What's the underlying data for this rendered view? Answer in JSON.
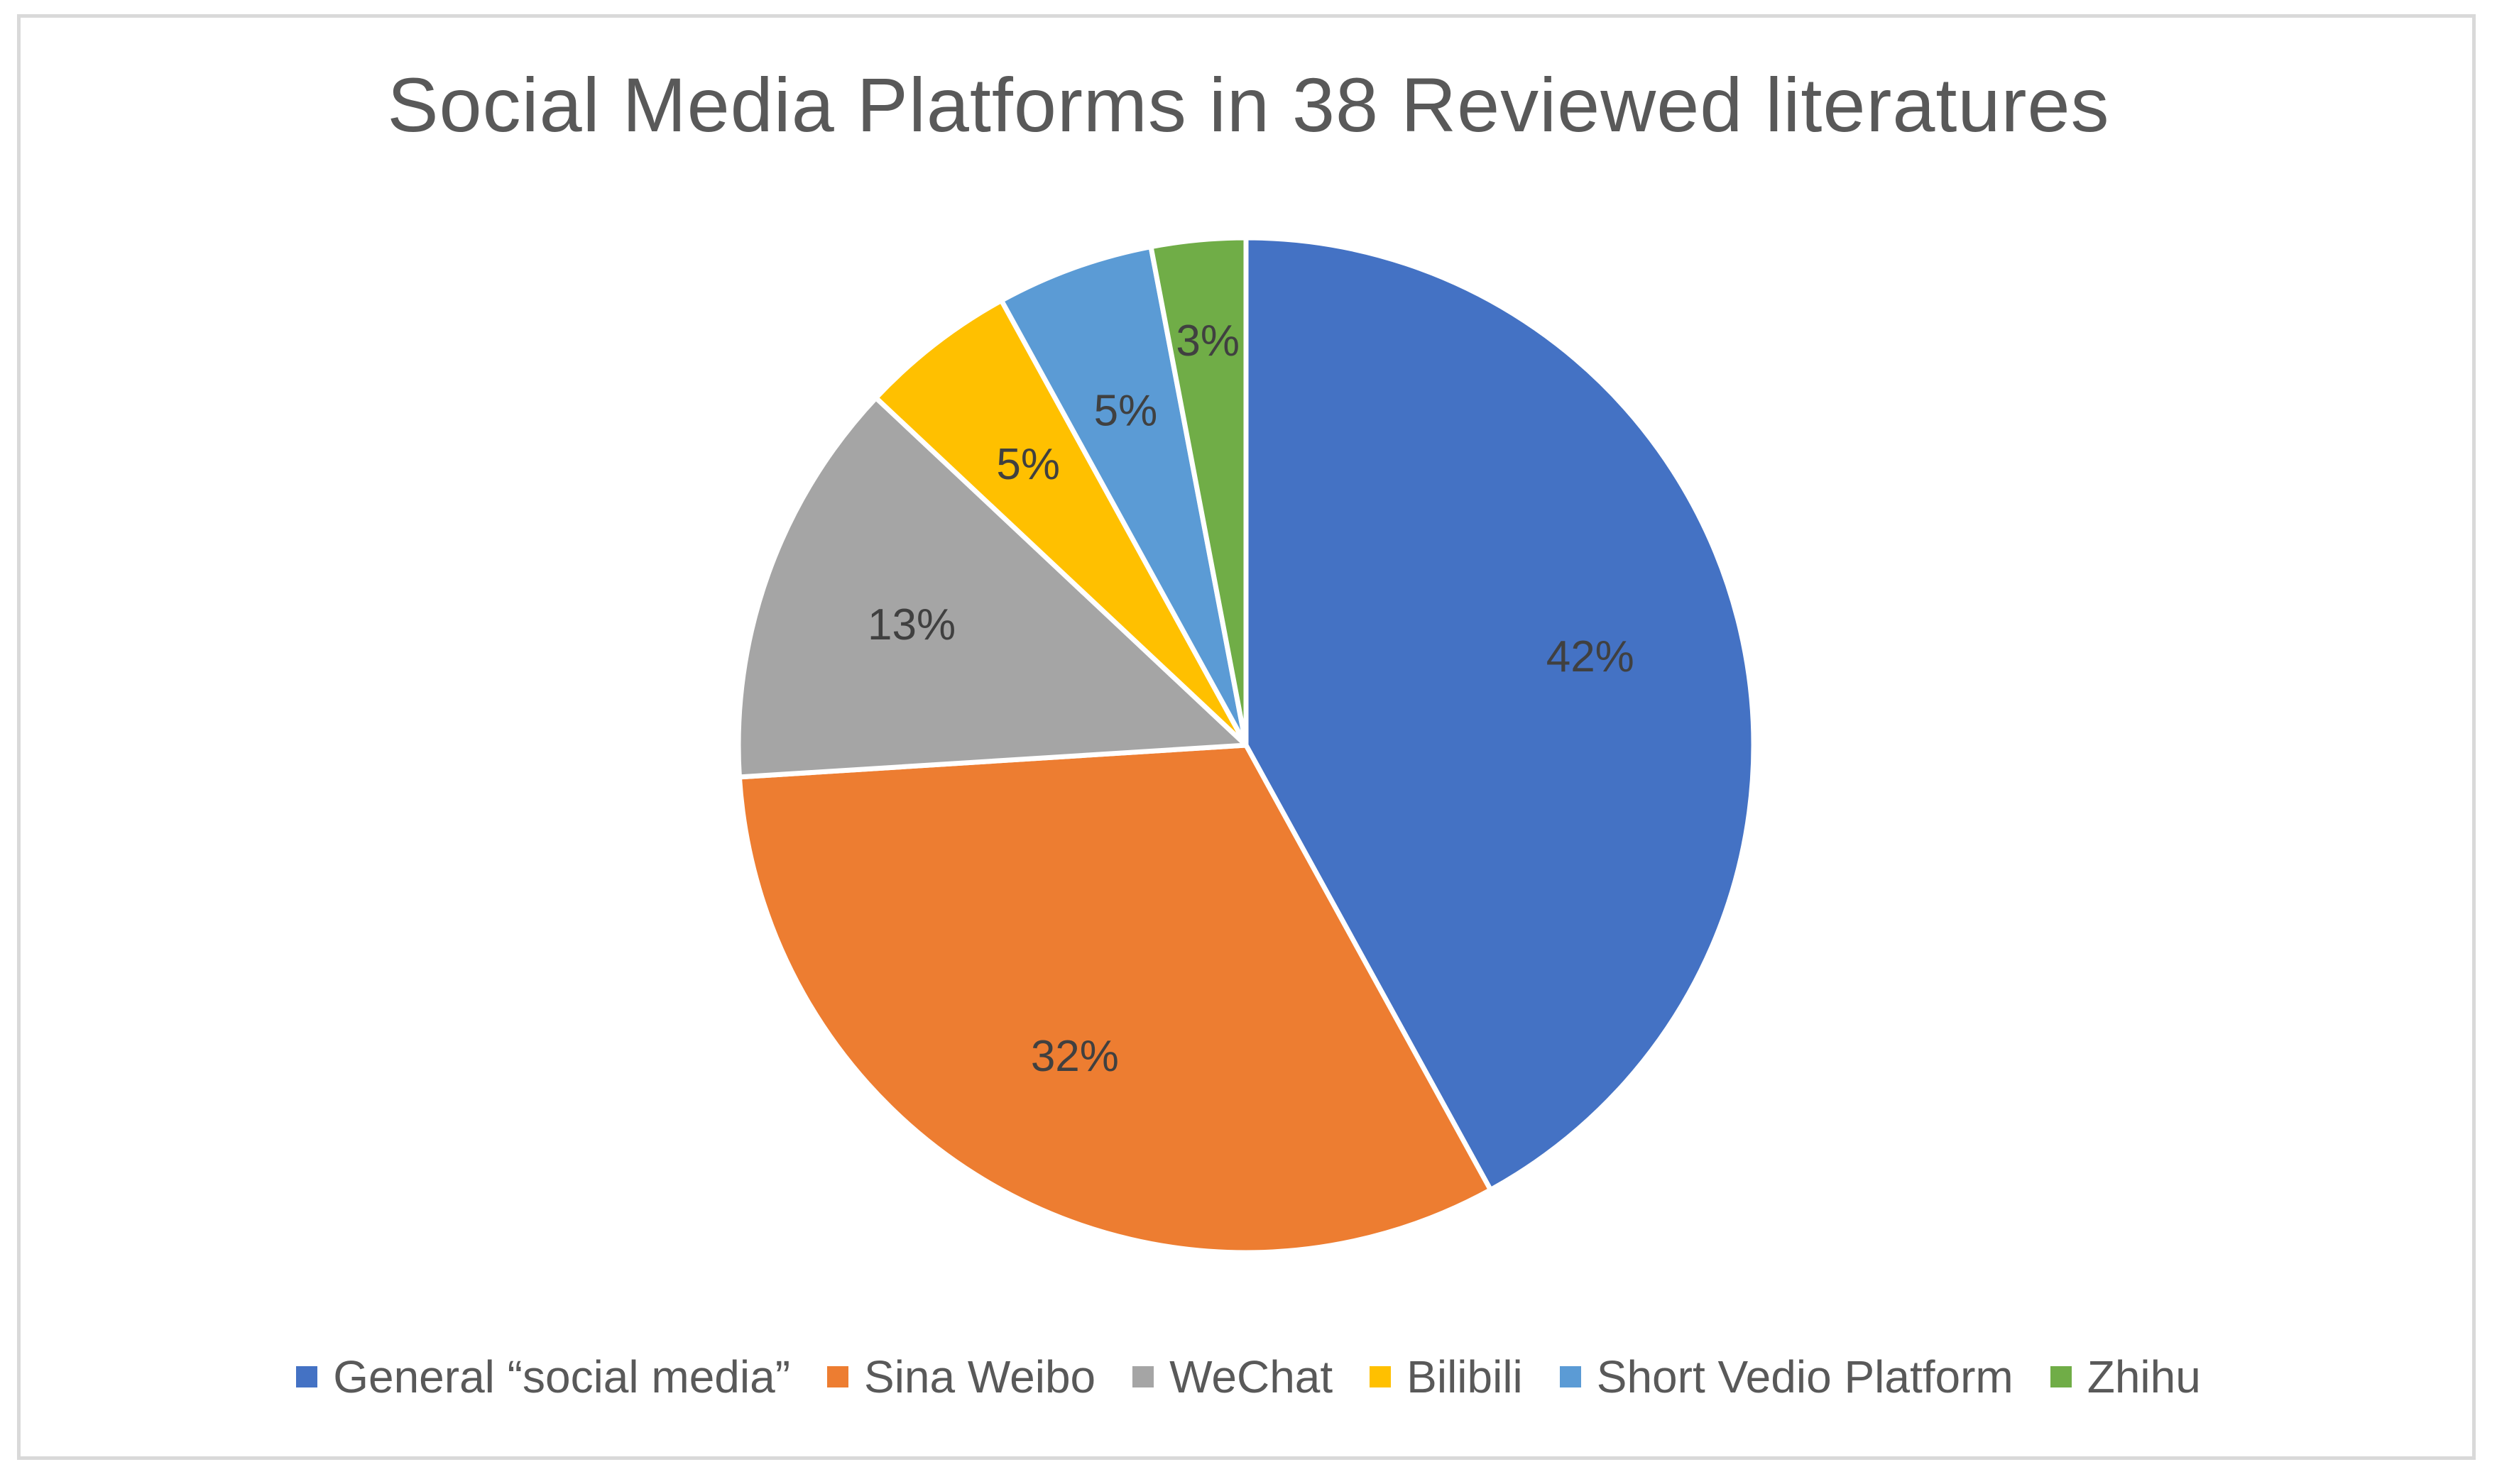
{
  "chart_data": {
    "type": "pie",
    "title": "Social Media Platforms in 38 Reviewed literatures",
    "legend_position": "bottom",
    "categories": [
      "General “social media”",
      "Sina Weibo",
      "WeChat",
      "Bilibili",
      "Short Vedio Platform",
      "Zhihu"
    ],
    "values": [
      42,
      32,
      13,
      5,
      5,
      3
    ],
    "labels": [
      "42%",
      "32%",
      "13%",
      "5%",
      "5%",
      "3%"
    ],
    "colors": [
      "#4472C4",
      "#ED7D31",
      "#A5A5A5",
      "#FFC000",
      "#5B9BD5",
      "#70AD47"
    ]
  }
}
